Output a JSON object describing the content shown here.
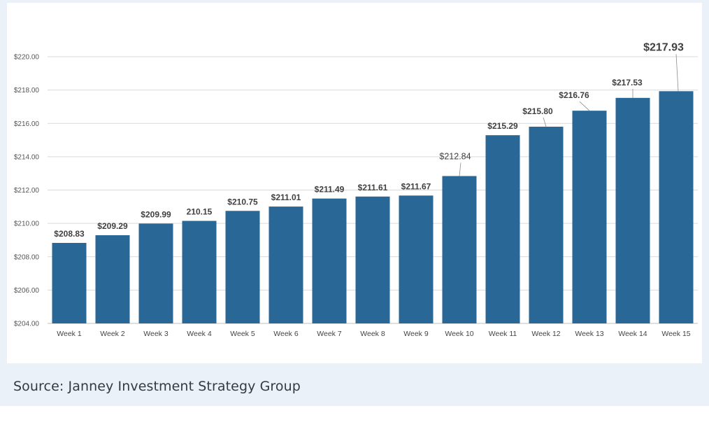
{
  "source": "Source: Janney Investment Strategy Group",
  "chart_data": {
    "type": "bar",
    "categories": [
      "Week 1",
      "Week 2",
      "Week 3",
      "Week 4",
      "Week 5",
      "Week 6",
      "Week 7",
      "Week 8",
      "Week 9",
      "Week 10",
      "Week 11",
      "Week 12",
      "Week 13",
      "Week 14",
      "Week 15"
    ],
    "values": [
      208.83,
      209.29,
      209.99,
      210.15,
      210.75,
      211.01,
      211.49,
      211.61,
      211.67,
      212.84,
      215.29,
      215.8,
      216.76,
      217.53,
      217.93
    ],
    "data_labels": [
      "$208.83",
      "$209.29",
      "$209.99",
      "210.15",
      "$210.75",
      "$211.01",
      "$211.49",
      "$211.61",
      "$211.67",
      "$212.84",
      "$215.29",
      "$215.80",
      "$216.76",
      "$217.53",
      "$217.93"
    ],
    "y_ticks": [
      "$204.00",
      "$206.00",
      "$208.00",
      "$210.00",
      "$212.00",
      "$214.00",
      "$216.00",
      "$218.00",
      "$220.00"
    ],
    "ylim": [
      204,
      220
    ],
    "grid": true,
    "bar_color": "#286796",
    "title": "",
    "xlabel": "",
    "ylabel": ""
  }
}
